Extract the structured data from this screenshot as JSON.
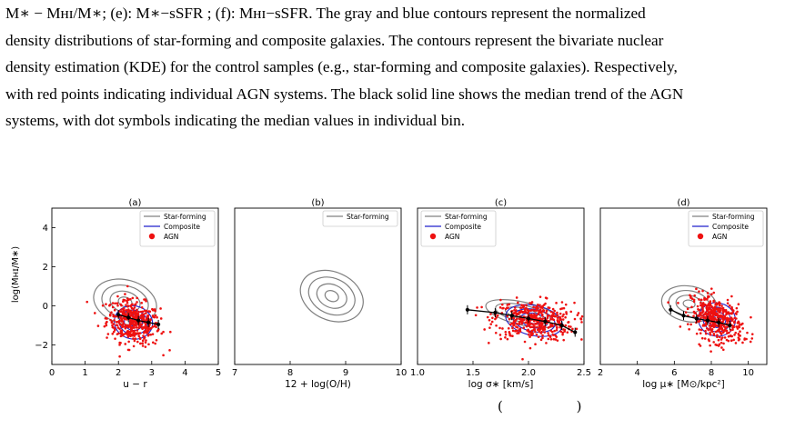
{
  "caption": {
    "lines": [
      "M∗ − Mʜɪ/M∗; (e): M∗−sSFR ; (f): Mʜɪ−sSFR. The gray and blue contours represent the normalized",
      "density distributions of star-forming and composite galaxies. The contours represent the bivariate nuclear",
      "density estimation (KDE) for the control samples (e.g., star-forming and composite galaxies). Respectively,",
      "with red points indicating individual AGN systems. The black solid line shows the median trend of the AGN",
      "systems, with dot symbols indicating the median values in individual bin."
    ]
  },
  "ylabel": "log(Mʜɪ/M∗)",
  "legend_labels": {
    "sf": "Star-forming",
    "comp": "Composite",
    "agn": "AGN"
  },
  "colors": {
    "sf": "#808080",
    "comp": "#2222cc",
    "agn": "#ee1111",
    "median": "#000000"
  },
  "equation_fragment": "( )",
  "chart_data": [
    {
      "type": "scatter",
      "title": "(a)",
      "xlabel": "u − r",
      "xlim": [
        0,
        5
      ],
      "ylim": [
        -3,
        5
      ],
      "xticks": [
        "0",
        "1",
        "2",
        "3",
        "4",
        "5"
      ],
      "yticks": [
        "−2",
        "0",
        "2",
        "4"
      ],
      "legend": [
        "Star-forming",
        "Composite",
        "AGN"
      ],
      "legend_position": "top-right",
      "agn_center": [
        2.45,
        -0.85
      ],
      "agn_spread": [
        0.4,
        0.55
      ],
      "median_x": [
        2.0,
        2.3,
        2.6,
        2.9,
        3.2
      ],
      "median_y": [
        -0.45,
        -0.6,
        -0.75,
        -0.85,
        -0.95
      ]
    },
    {
      "type": "scatter",
      "title": "(b)",
      "xlabel": "12 + log(O/H)",
      "xlim": [
        7,
        10
      ],
      "ylim": [
        -3,
        5
      ],
      "xticks": [
        "7",
        "8",
        "9",
        "10"
      ],
      "yticks": [],
      "legend": [
        "Star-forming"
      ],
      "legend_position": "top-right"
    },
    {
      "type": "scatter",
      "title": "(c)",
      "xlabel": "log σ∗ [km/s]",
      "xlim": [
        1.0,
        2.5
      ],
      "ylim": [
        -3,
        5
      ],
      "xticks": [
        "1.0",
        "1.5",
        "2.0",
        "2.5"
      ],
      "yticks": [],
      "legend": [
        "Star-forming",
        "Composite",
        "AGN"
      ],
      "legend_position": "top-left",
      "agn_center": [
        2.05,
        -0.75
      ],
      "agn_spread": [
        0.18,
        0.5
      ],
      "median_x": [
        1.45,
        1.7,
        1.85,
        2.0,
        2.15,
        2.3,
        2.42
      ],
      "median_y": [
        -0.2,
        -0.35,
        -0.5,
        -0.65,
        -0.8,
        -1.0,
        -1.35
      ]
    },
    {
      "type": "scatter",
      "title": "(d)",
      "xlabel": "log μ∗ [M⊙/kpc²]",
      "xlim": [
        2,
        11
      ],
      "ylim": [
        -3,
        5
      ],
      "xticks": [
        "2",
        "4",
        "6",
        "8",
        "10"
      ],
      "yticks": [],
      "legend": [
        "Star-forming",
        "Composite",
        "AGN"
      ],
      "legend_position": "top-right",
      "agn_center": [
        8.3,
        -0.7
      ],
      "agn_spread": [
        0.7,
        0.55
      ],
      "median_x": [
        5.8,
        6.5,
        7.2,
        7.8,
        8.4,
        9.0
      ],
      "median_y": [
        -0.2,
        -0.5,
        -0.65,
        -0.75,
        -0.85,
        -1.0
      ]
    }
  ]
}
